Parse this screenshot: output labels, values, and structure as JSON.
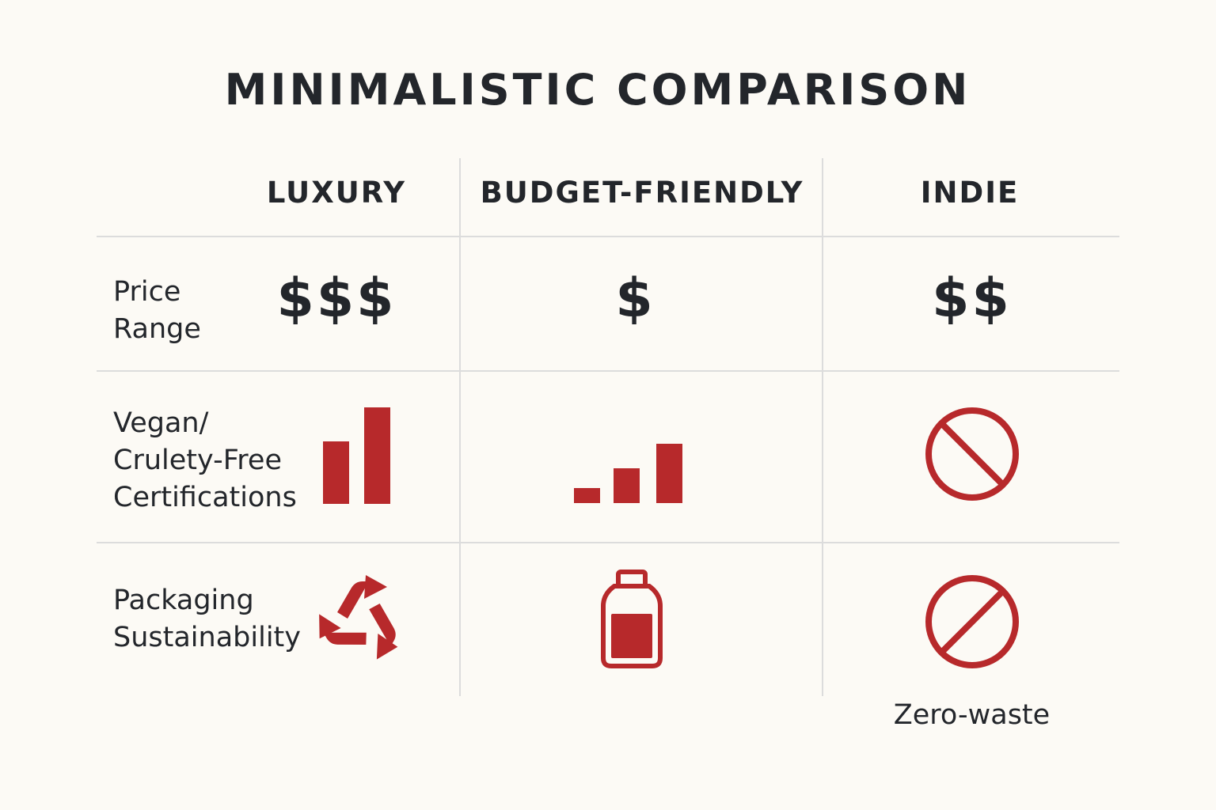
{
  "title": "MINIMALISTIC COMPARISON",
  "columns": [
    "LUXURY",
    "BUDGET-FRIENDLY",
    "INDIE"
  ],
  "rows": [
    {
      "label": "Price\nRange",
      "cells": [
        "$$$",
        "$",
        "$$"
      ]
    },
    {
      "label": "Vegan/\nCrulety-Free\nCertifications",
      "cells": [
        {
          "icon": "bar-chart-icon",
          "level": 2,
          "max": 3
        },
        {
          "icon": "bar-chart-icon",
          "level": 3,
          "max": 3
        },
        {
          "icon": "prohibited-icon"
        }
      ]
    },
    {
      "label": "Packaging\nSustainability",
      "cells": [
        {
          "icon": "recycle-icon"
        },
        {
          "icon": "bottle-icon"
        },
        {
          "icon": "prohibited-icon",
          "note": "Zero-waste"
        }
      ]
    }
  ],
  "colors": {
    "accent": "#b7292b",
    "text": "#23262b",
    "grid": "#dcdcdc",
    "background": "#fcfaf5"
  }
}
